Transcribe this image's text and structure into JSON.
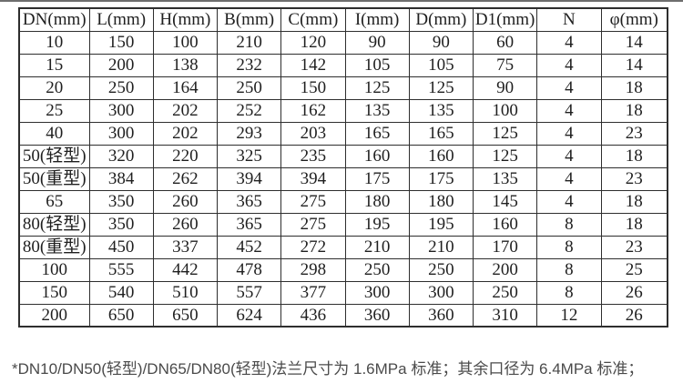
{
  "page": {
    "top_divider_color": "#6e6e6e",
    "background_color": "#ffffff"
  },
  "table": {
    "headers": [
      "DN(mm)",
      "L(mm)",
      "H(mm)",
      "B(mm)",
      "C(mm)",
      "I(mm)",
      "D(mm)",
      "D1(mm)",
      "N",
      "φ(mm)"
    ],
    "rows": [
      [
        "10",
        "150",
        "100",
        "210",
        "120",
        "90",
        "90",
        "60",
        "4",
        "14"
      ],
      [
        "15",
        "200",
        "138",
        "232",
        "142",
        "105",
        "105",
        "75",
        "4",
        "14"
      ],
      [
        "20",
        "250",
        "164",
        "250",
        "150",
        "125",
        "125",
        "90",
        "4",
        "18"
      ],
      [
        "25",
        "300",
        "202",
        "252",
        "162",
        "135",
        "135",
        "100",
        "4",
        "18"
      ],
      [
        "40",
        "300",
        "202",
        "293",
        "203",
        "165",
        "165",
        "125",
        "4",
        "23"
      ],
      [
        "50(轻型)",
        "320",
        "220",
        "325",
        "235",
        "160",
        "160",
        "125",
        "4",
        "18"
      ],
      [
        "50(重型)",
        "384",
        "262",
        "394",
        "394",
        "175",
        "175",
        "135",
        "4",
        "23"
      ],
      [
        "65",
        "350",
        "260",
        "365",
        "275",
        "180",
        "180",
        "145",
        "4",
        "18"
      ],
      [
        "80(轻型)",
        "350",
        "260",
        "365",
        "275",
        "195",
        "195",
        "160",
        "8",
        "18"
      ],
      [
        "80(重型)",
        "450",
        "337",
        "452",
        "272",
        "210",
        "210",
        "170",
        "8",
        "23"
      ],
      [
        "100",
        "555",
        "442",
        "478",
        "298",
        "250",
        "250",
        "200",
        "8",
        "25"
      ],
      [
        "150",
        "540",
        "510",
        "557",
        "377",
        "300",
        "300",
        "250",
        "8",
        "26"
      ],
      [
        "200",
        "650",
        "650",
        "624",
        "436",
        "360",
        "360",
        "310",
        "12",
        "26"
      ]
    ],
    "border_color": "#2e2e2e",
    "text_color": "#1f1f1f"
  },
  "footnote": {
    "text": "*DN10/DN50(轻型)/DN65/DN80(轻型)法兰尺寸为 1.6MPa 标准；其余口径为 6.4MPa 标准；",
    "color": "#4a4a4a"
  }
}
